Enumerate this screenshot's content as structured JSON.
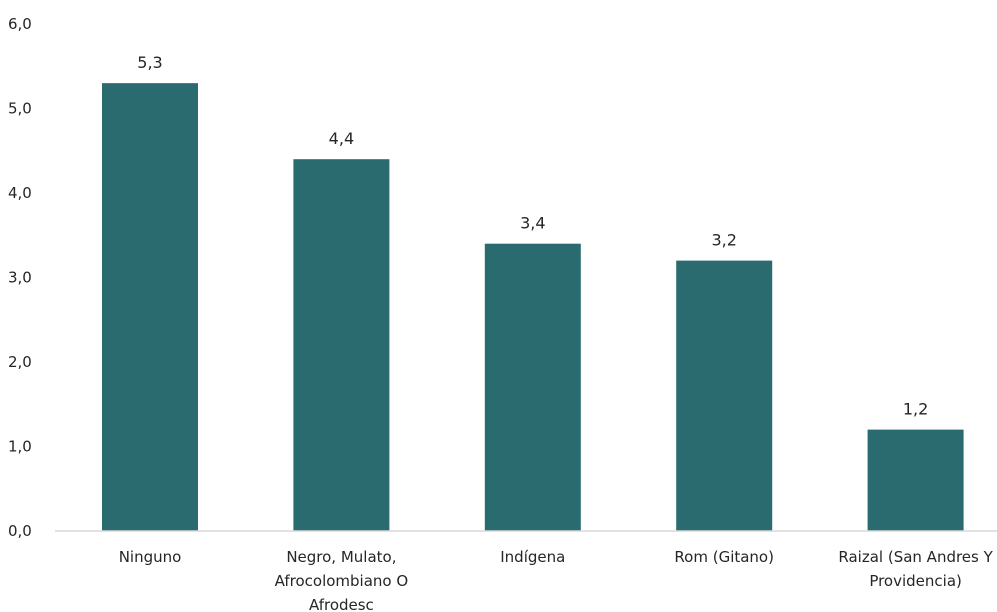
{
  "chart_data": {
    "type": "bar",
    "categories": [
      [
        "Ninguno"
      ],
      [
        "Negro, Mulato,",
        "Afrocolombiano O",
        "Afrodesc"
      ],
      [
        "Indígena"
      ],
      [
        "Rom (Gitano)"
      ],
      [
        "Raizal (San Andres Y",
        "Providencia)"
      ]
    ],
    "values": [
      5.3,
      4.4,
      3.4,
      3.2,
      1.2
    ],
    "data_labels": [
      "5,3",
      "4,4",
      "3,4",
      "3,2",
      "1,2"
    ],
    "y_ticks": [
      "0,0",
      "1,0",
      "2,0",
      "3,0",
      "4,0",
      "5,0",
      "6,0"
    ],
    "ylim": [
      0,
      6
    ],
    "grid": false,
    "bar_color": "#2a6b6f",
    "axis_color": "#d9d9d9"
  }
}
